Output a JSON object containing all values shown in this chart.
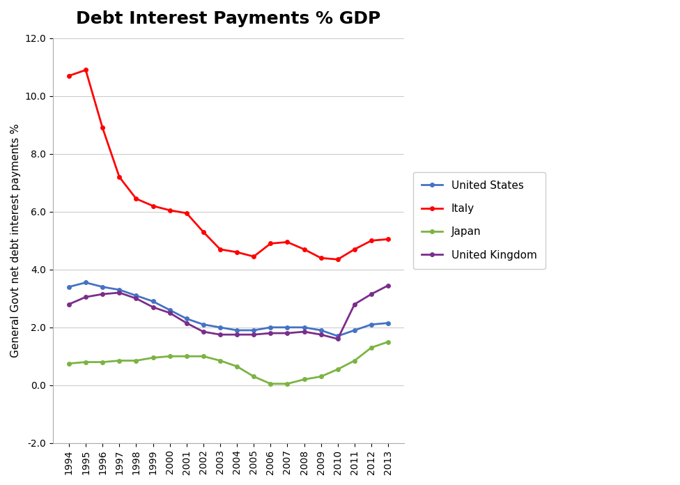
{
  "title": "Debt Interest Payments % GDP",
  "ylabel": "General Govt net debt interest payments %",
  "years": [
    1994,
    1995,
    1996,
    1997,
    1998,
    1999,
    2000,
    2001,
    2002,
    2003,
    2004,
    2005,
    2006,
    2007,
    2008,
    2009,
    2010,
    2011,
    2012,
    2013
  ],
  "series": {
    "United States": {
      "color": "#4472C4",
      "values": [
        3.4,
        3.55,
        3.4,
        3.3,
        3.1,
        2.9,
        2.6,
        2.3,
        2.1,
        2.0,
        1.9,
        1.9,
        2.0,
        2.0,
        2.0,
        1.9,
        1.7,
        1.9,
        2.1,
        2.15
      ]
    },
    "Italy": {
      "color": "#FF0000",
      "values": [
        10.7,
        10.9,
        8.9,
        7.2,
        6.45,
        6.2,
        6.05,
        5.95,
        5.3,
        4.7,
        4.6,
        4.45,
        4.9,
        4.95,
        4.7,
        4.4,
        4.35,
        4.7,
        5.0,
        5.05
      ]
    },
    "Japan": {
      "color": "#7CB342",
      "values": [
        0.75,
        0.8,
        0.8,
        0.85,
        0.85,
        0.95,
        1.0,
        1.0,
        1.0,
        0.85,
        0.65,
        0.3,
        0.05,
        0.05,
        0.2,
        0.3,
        0.55,
        0.85,
        1.3,
        1.5
      ]
    },
    "United Kingdom": {
      "color": "#7B2D8B",
      "values": [
        2.8,
        3.05,
        3.15,
        3.2,
        3.0,
        2.7,
        2.5,
        2.15,
        1.85,
        1.75,
        1.75,
        1.75,
        1.8,
        1.8,
        1.85,
        1.75,
        1.6,
        2.8,
        3.15,
        3.45
      ]
    }
  },
  "ylim": [
    -2.0,
    12.0
  ],
  "yticks": [
    -2.0,
    0.0,
    2.0,
    4.0,
    6.0,
    8.0,
    10.0,
    12.0
  ],
  "background_color": "#FFFFFF",
  "grid_color": "#CCCCCC",
  "title_fontsize": 18,
  "label_fontsize": 11,
  "tick_fontsize": 10,
  "legend_fontsize": 11
}
